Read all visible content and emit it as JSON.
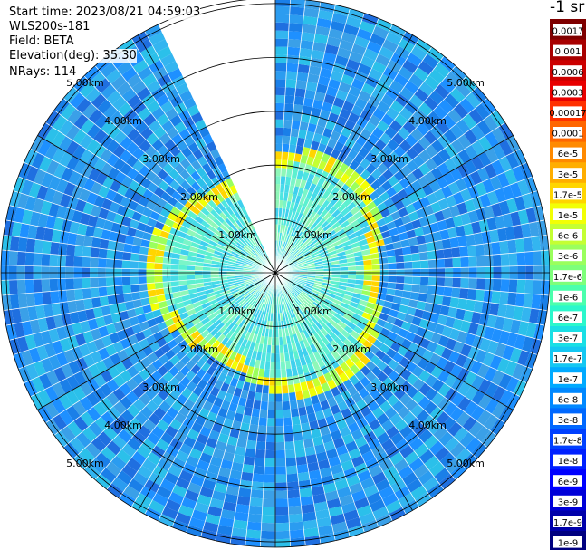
{
  "header": {
    "start_time": "Start time: 2023/08/21 04:59:03",
    "instrument": "WLS200s-181",
    "field": "Field: BETA",
    "elevation": "Elevation(deg): 35.30",
    "nrays": "NRays: 114"
  },
  "chart_data": {
    "type": "polar-ppi",
    "field": "BETA",
    "units_label": "-1 sr",
    "nrays": 114,
    "elevation_deg": 35.3,
    "range_rings_km": [
      1.0,
      2.0,
      3.0,
      4.0,
      5.0
    ],
    "range_max_km": 5.1,
    "ring_labels": [
      "1.00km",
      "2.00km",
      "3.00km",
      "4.00km",
      "5.00km"
    ],
    "missing_sector_deg": [
      -25,
      0
    ],
    "grid": true,
    "colorbar": {
      "labels": [
        "0.0017",
        "0.001",
        "0.0006",
        "0.0003",
        "0.00017",
        "0.0001",
        "6e-5",
        "3e-5",
        "1.7e-5",
        "1e-5",
        "6e-6",
        "3e-6",
        "1.7e-6",
        "1e-6",
        "6e-7",
        "3e-7",
        "1.7e-7",
        "1e-7",
        "6e-8",
        "3e-8",
        "1.7e-8",
        "1e-8",
        "6e-9",
        "3e-9",
        "1.7e-9",
        "1e-9"
      ],
      "colors": [
        "#7f0000",
        "#a80000",
        "#cc0000",
        "#e80000",
        "#ff3000",
        "#ff6600",
        "#ff8a00",
        "#ffae00",
        "#ffd500",
        "#f2ff05",
        "#c4ff33",
        "#9aff5d",
        "#7dff7a",
        "#4bffad",
        "#2bf7cc",
        "#1adfe5",
        "#14c7f2",
        "#00aaff",
        "#0088ff",
        "#0068ff",
        "#0040ff",
        "#0020ff",
        "#0000ff",
        "#0000d8",
        "#0000aa",
        "#000080"
      ],
      "position": "right"
    }
  }
}
